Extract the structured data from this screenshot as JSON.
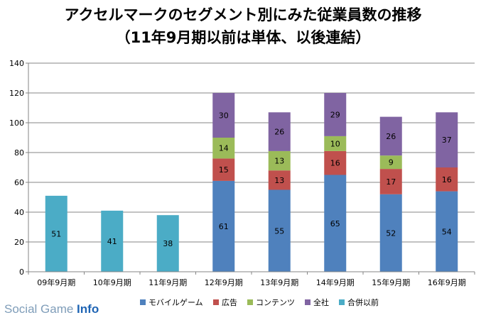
{
  "header": {
    "title_line1": "アクセルマークのセグメント別にみた従業員数の推移",
    "title_line2": "（11年9月期以前は単体、以後連結）"
  },
  "watermark": {
    "brand": "Social Game ",
    "suffix": "Info"
  },
  "chart_data": {
    "type": "bar",
    "stacked": true,
    "categories": [
      "09年9月期",
      "10年9月期",
      "11年9月期",
      "12年9月期",
      "13年9月期",
      "14年9月期",
      "15年9月期",
      "16年9月期"
    ],
    "ylim": [
      0,
      140
    ],
    "yticks": [
      0,
      20,
      40,
      60,
      80,
      100,
      120,
      140
    ],
    "grid": true,
    "legend_position": "bottom",
    "series": [
      {
        "name": "モバイルゲーム",
        "color": "#4f81bd",
        "values": [
          null,
          null,
          null,
          61,
          55,
          65,
          52,
          54
        ]
      },
      {
        "name": "広告",
        "color": "#c0504d",
        "values": [
          null,
          null,
          null,
          15,
          13,
          16,
          17,
          16
        ]
      },
      {
        "name": "コンテンツ",
        "color": "#9bbb59",
        "values": [
          null,
          null,
          null,
          14,
          13,
          10,
          9,
          0
        ]
      },
      {
        "name": "全社",
        "color": "#8064a2",
        "values": [
          null,
          null,
          null,
          30,
          26,
          29,
          26,
          37
        ]
      },
      {
        "name": "合併以前",
        "color": "#4bacc6",
        "values": [
          51,
          41,
          38,
          null,
          null,
          null,
          null,
          null
        ]
      }
    ]
  }
}
